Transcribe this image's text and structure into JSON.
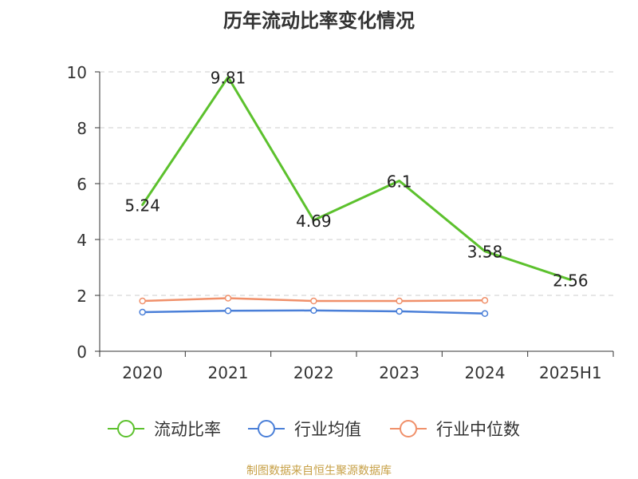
{
  "chart_data": {
    "type": "line",
    "title": "历年流动比率变化情况",
    "categories": [
      "2020",
      "2021",
      "2022",
      "2023",
      "2024",
      "2025H1"
    ],
    "yticks": [
      "0",
      "2",
      "4",
      "6",
      "8",
      "10"
    ],
    "ylim": [
      0,
      10
    ],
    "grid": "horizontal dashed",
    "legend_position": "bottom",
    "series": [
      {
        "name": "流动比率",
        "color": "#5cc12d",
        "values": [
          5.24,
          9.81,
          4.69,
          6.1,
          3.58,
          2.56
        ],
        "labels": [
          "5.24",
          "9.81",
          "4.69",
          "6.1",
          "3.58",
          "2.56"
        ]
      },
      {
        "name": "行业均值",
        "color": "#4a7fd8",
        "values": [
          1.4,
          1.45,
          1.46,
          1.43,
          1.35,
          null
        ],
        "labels": []
      },
      {
        "name": "行业中位数",
        "color": "#f0906a",
        "values": [
          1.8,
          1.9,
          1.8,
          1.8,
          1.82,
          null
        ],
        "labels": []
      }
    ]
  },
  "footer": {
    "source": "制图数据来自恒生聚源数据库"
  }
}
